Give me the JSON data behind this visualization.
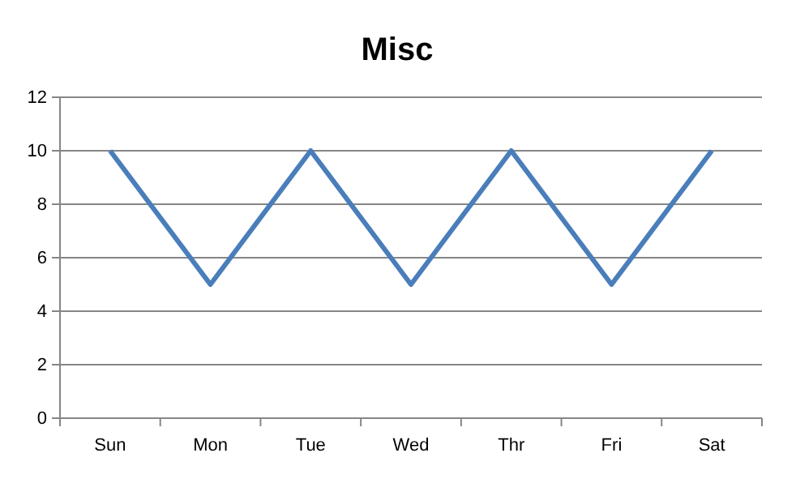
{
  "chart_data": {
    "type": "line",
    "title": "Misc",
    "categories": [
      "Sun",
      "Mon",
      "Tue",
      "Wed",
      "Thr",
      "Fri",
      "Sat"
    ],
    "series": [
      {
        "color": "#4a7ebb",
        "values": [
          10,
          5,
          10,
          5,
          10,
          5,
          10
        ]
      }
    ],
    "ylim": [
      0,
      12
    ],
    "yticks": [
      0,
      2,
      4,
      6,
      8,
      10,
      12
    ],
    "grid": "y",
    "legend": false,
    "marker": "none",
    "line_style": "solid"
  }
}
